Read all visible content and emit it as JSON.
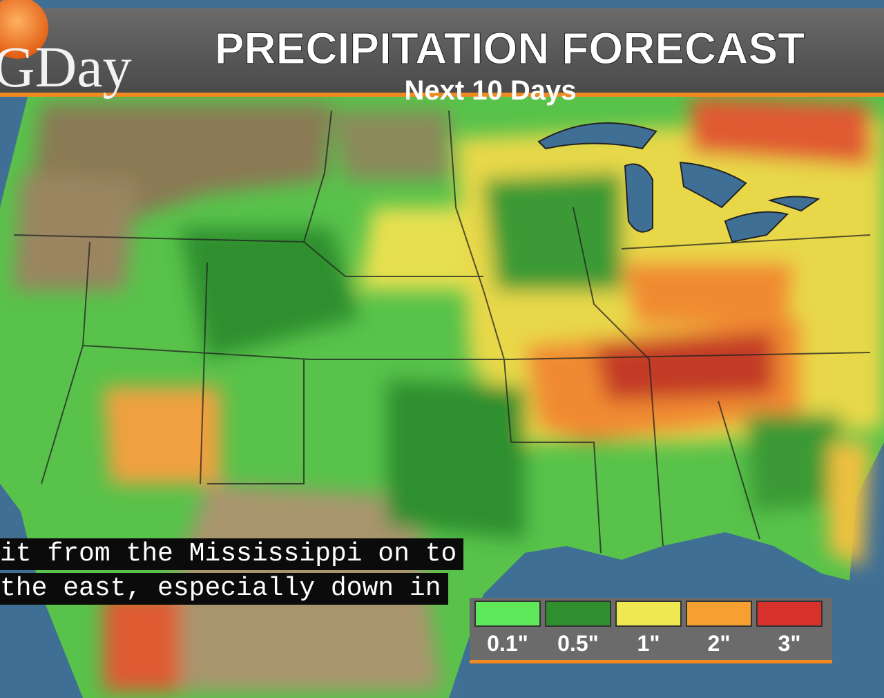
{
  "header": {
    "brand": "GDay",
    "title": "PRECIPITATION FORECAST",
    "subtitle": "Next 10 Days"
  },
  "caption": {
    "lines": [
      "it from the Mississippi on to",
      "the east, especially down in"
    ]
  },
  "legend": {
    "items": [
      {
        "label": "0.1\"",
        "color": "#5fe85a"
      },
      {
        "label": "0.5\"",
        "color": "#2f8f2f"
      },
      {
        "label": "1\"",
        "color": "#f0e850"
      },
      {
        "label": "2\"",
        "color": "#f5a030"
      },
      {
        "label": "3\"",
        "color": "#d8302a"
      }
    ]
  }
}
